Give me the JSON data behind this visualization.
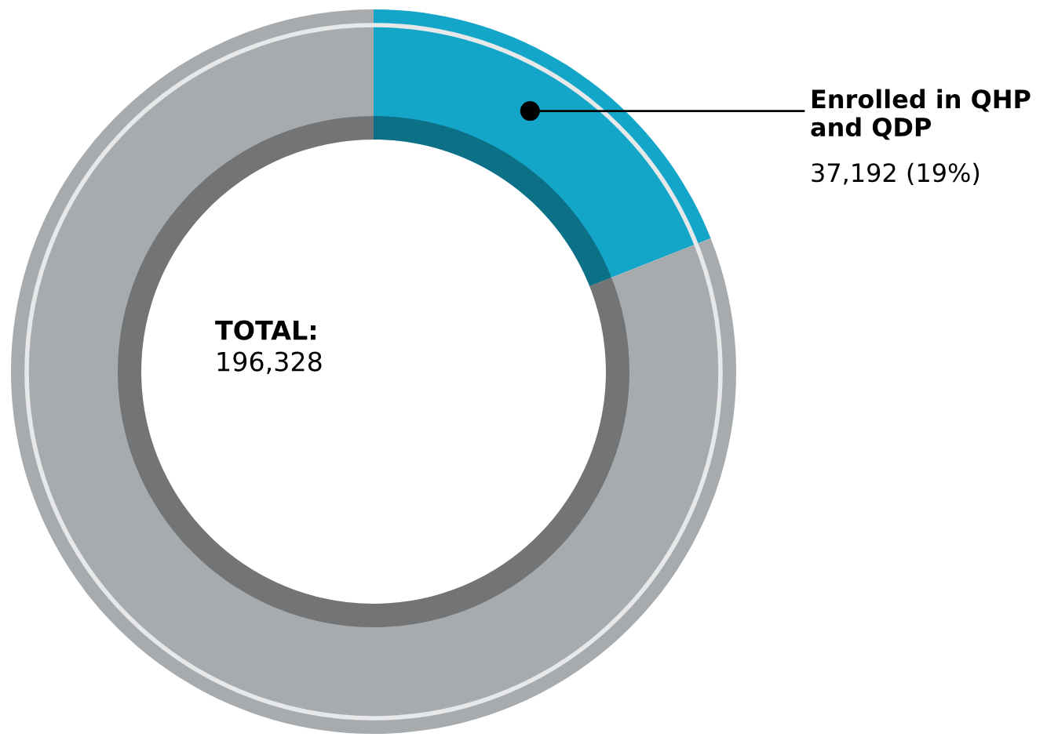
{
  "chart_data": {
    "type": "donut",
    "categories": [
      "Enrolled in QHP\nand QDP",
      null
    ],
    "values": [
      19,
      81
    ],
    "colors": [
      "#13a6c8",
      "#a8abad"
    ],
    "value_labels": [
      "37,192 (19%)",
      null
    ],
    "annotations": [
      "TOTAL:",
      "196,328"
    ],
    "legend": false
  }
}
